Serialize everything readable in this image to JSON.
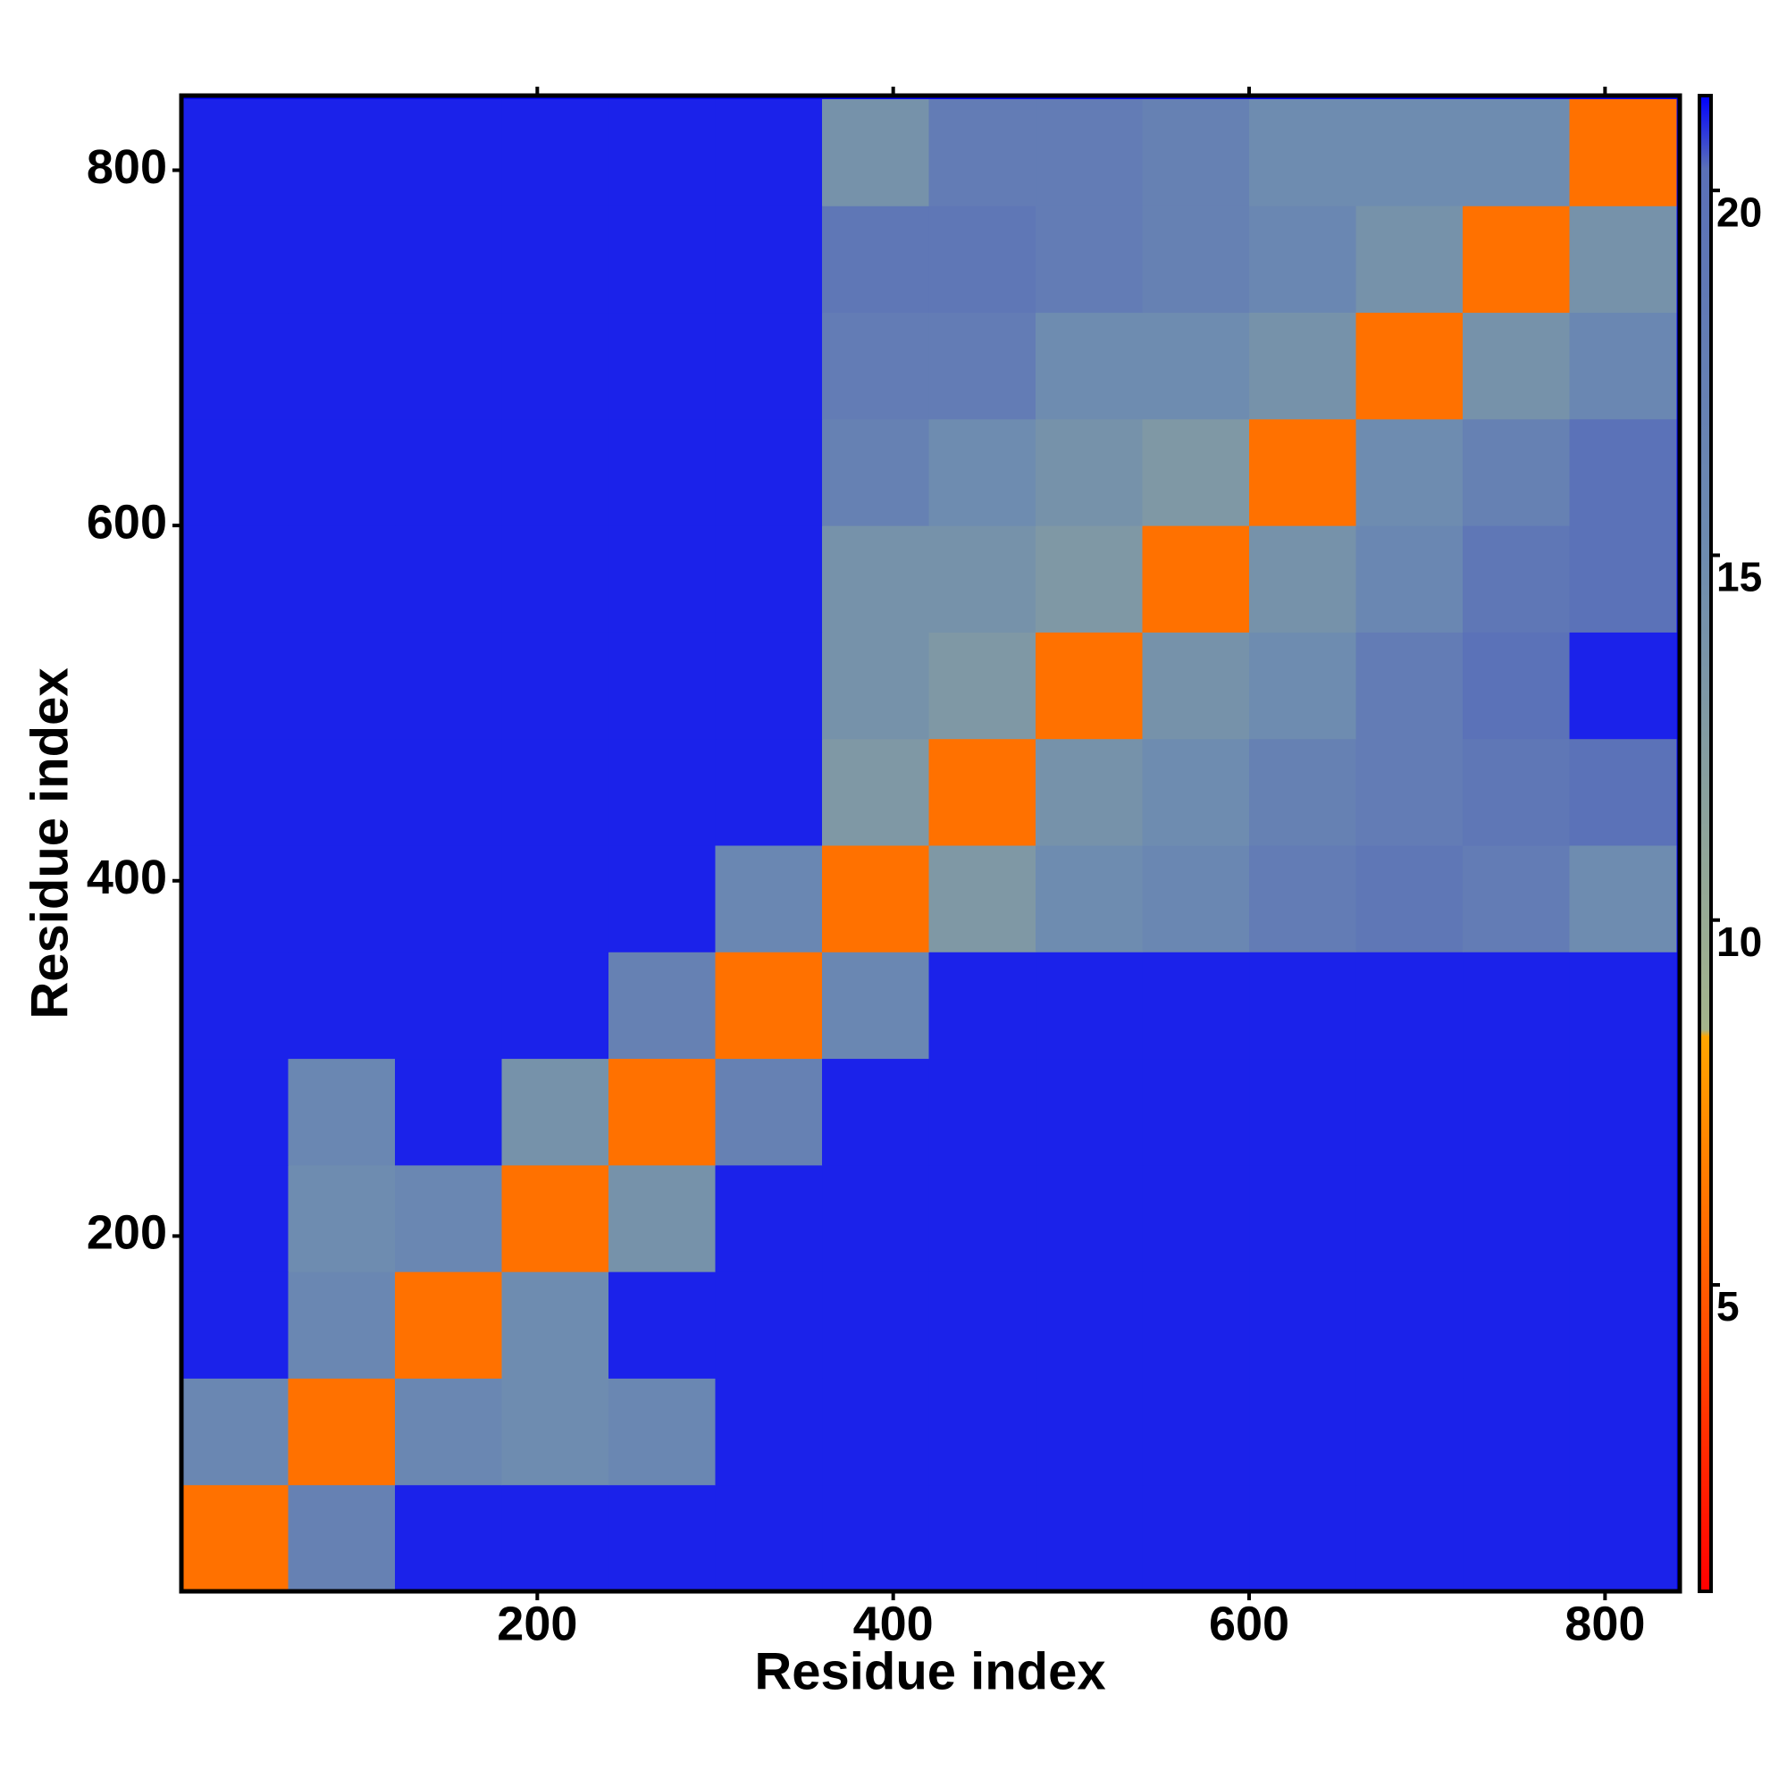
{
  "chart_data": {
    "type": "heatmap",
    "xlabel": "Residue index",
    "ylabel": "Residue index",
    "x_bins": [
      0,
      60,
      120,
      180,
      240,
      300,
      360,
      420,
      480,
      540,
      600,
      660,
      720,
      780,
      840
    ],
    "y_bins": [
      0,
      60,
      120,
      180,
      240,
      300,
      360,
      420,
      480,
      540,
      600,
      660,
      720,
      780,
      840
    ],
    "z": [
      [
        6,
        17,
        21,
        21,
        21,
        21,
        21,
        21,
        21,
        21,
        21,
        21,
        21,
        21
      ],
      [
        16,
        6,
        16,
        15,
        16,
        21,
        21,
        21,
        21,
        21,
        21,
        21,
        21,
        21
      ],
      [
        21,
        16,
        6,
        15,
        21,
        21,
        21,
        21,
        21,
        21,
        21,
        21,
        21,
        21
      ],
      [
        21,
        15,
        16,
        6,
        14,
        21,
        21,
        21,
        21,
        21,
        21,
        21,
        21,
        21
      ],
      [
        21,
        16,
        21,
        14,
        6,
        17,
        21,
        21,
        21,
        21,
        21,
        21,
        21,
        21
      ],
      [
        21,
        21,
        21,
        21,
        17,
        6,
        16,
        21,
        21,
        21,
        21,
        21,
        21,
        21
      ],
      [
        21,
        21,
        21,
        21,
        21,
        16,
        6,
        13,
        15,
        16,
        18,
        19,
        18,
        15
      ],
      [
        21,
        21,
        21,
        21,
        21,
        21,
        13,
        6,
        14,
        15,
        17,
        18,
        19,
        20
      ],
      [
        21,
        21,
        21,
        21,
        21,
        21,
        14,
        13,
        6,
        14,
        15,
        18,
        20,
        21
      ],
      [
        21,
        21,
        21,
        21,
        21,
        21,
        14,
        14,
        13,
        6,
        14,
        16,
        19,
        20
      ],
      [
        21,
        21,
        21,
        21,
        21,
        21,
        17,
        15,
        14,
        13,
        6,
        15,
        17,
        20
      ],
      [
        21,
        21,
        21,
        21,
        21,
        21,
        18,
        18,
        15,
        15,
        14,
        6,
        14,
        16
      ],
      [
        21,
        21,
        21,
        21,
        21,
        21,
        19,
        19,
        18,
        17,
        16,
        14,
        6,
        14
      ],
      [
        21,
        21,
        21,
        21,
        21,
        21,
        14,
        18,
        18,
        17,
        15,
        15,
        15,
        6
      ]
    ],
    "xlim": [
      0,
      842
    ],
    "ylim": [
      0,
      842
    ],
    "xticks": [
      200,
      400,
      600,
      800
    ],
    "yticks": [
      200,
      400,
      600,
      800
    ],
    "zlim": [
      0.8,
      21.3
    ],
    "zticks": [
      5,
      10,
      15,
      20
    ],
    "colorscale": [
      [
        0.8,
        "#ff0000"
      ],
      [
        8.4,
        "#ffa500"
      ],
      [
        8.5,
        "#a4b48c"
      ],
      [
        15,
        "#6e8cb0"
      ],
      [
        20.3,
        "#5a70b8"
      ],
      [
        21.3,
        "#0000ff"
      ]
    ]
  }
}
